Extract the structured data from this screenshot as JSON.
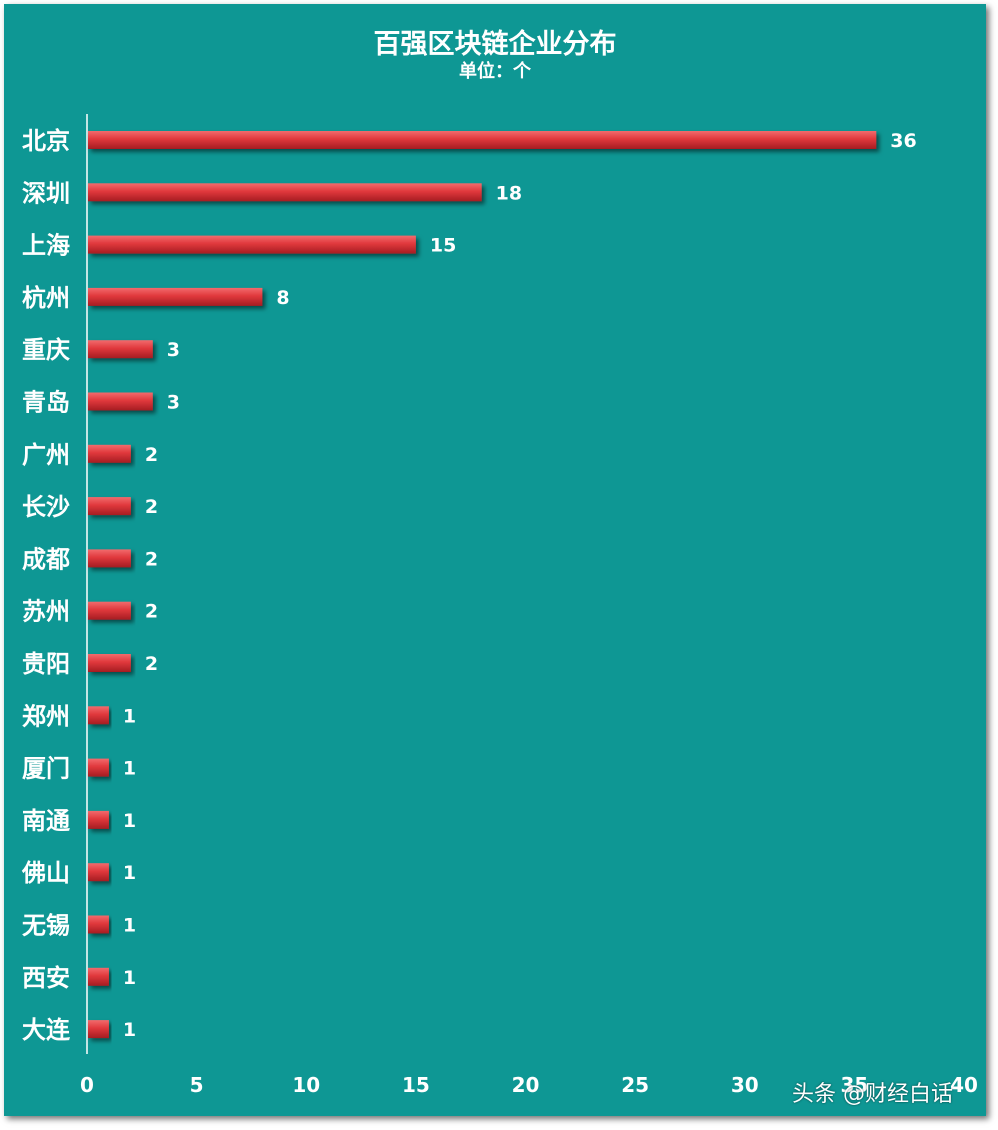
{
  "chart_data": {
    "type": "bar",
    "orientation": "horizontal",
    "title": "百强区块链企业分布",
    "subtitle": "单位：个",
    "categories": [
      "北京",
      "深圳",
      "上海",
      "杭州",
      "重庆",
      "青岛",
      "广州",
      "长沙",
      "成都",
      "苏州",
      "贵阳",
      "郑州",
      "厦门",
      "南通",
      "佛山",
      "无锡",
      "西安",
      "大连"
    ],
    "values": [
      36,
      18,
      15,
      8,
      3,
      3,
      2,
      2,
      2,
      2,
      2,
      1,
      1,
      1,
      1,
      1,
      1,
      1
    ],
    "xlim": [
      0,
      40
    ],
    "xticks": [
      0,
      5,
      10,
      15,
      20,
      25,
      30,
      35,
      40
    ],
    "grid": false,
    "colors": {
      "background": "#0e9794",
      "bar": "#e0383c",
      "bar_light": "#f26b6d",
      "bar_dark": "#a51d22",
      "text": "#ffffff"
    }
  },
  "watermark": "头条 @财经白话"
}
